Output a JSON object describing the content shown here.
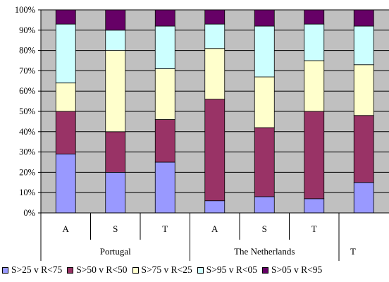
{
  "chart_data": {
    "type": "bar",
    "stacked": true,
    "title": "",
    "xlabel": "",
    "ylabel": "",
    "ylim": [
      0,
      100
    ],
    "yticks": [
      "0%",
      "10%",
      "20%",
      "30%",
      "40%",
      "50%",
      "60%",
      "70%",
      "80%",
      "90%",
      "100%"
    ],
    "grid": true,
    "legend_position": "bottom",
    "groups": [
      {
        "name": "Portugal",
        "categories": [
          "A",
          "S",
          "T"
        ]
      },
      {
        "name": "The Netherlands",
        "categories": [
          "A",
          "S",
          "T"
        ]
      },
      {
        "name": "T",
        "categories": [
          ""
        ]
      }
    ],
    "categories": [
      "A",
      "S",
      "T",
      "A",
      "S",
      "T",
      ""
    ],
    "series": [
      {
        "name": "S>25 v R<75",
        "color": "#9999ff",
        "values": [
          29,
          20,
          25,
          6,
          8,
          7,
          15
        ]
      },
      {
        "name": "S>50 v R<50",
        "color": "#993366",
        "values": [
          21,
          20,
          21,
          50,
          34,
          43,
          33
        ]
      },
      {
        "name": "S>75 v R<25",
        "color": "#ffffcc",
        "values": [
          14,
          40,
          25,
          25,
          25,
          25,
          25
        ]
      },
      {
        "name": "S>95 v R<05",
        "color": "#ccffff",
        "values": [
          29,
          10,
          21,
          12,
          25,
          18,
          19
        ]
      },
      {
        "name": "S>05 v R<95",
        "color": "#660066",
        "values": [
          7,
          10,
          8,
          7,
          8,
          7,
          8
        ]
      }
    ],
    "colors": {
      "plot_background": "#c0c0c0",
      "gridline": "#000000"
    }
  }
}
